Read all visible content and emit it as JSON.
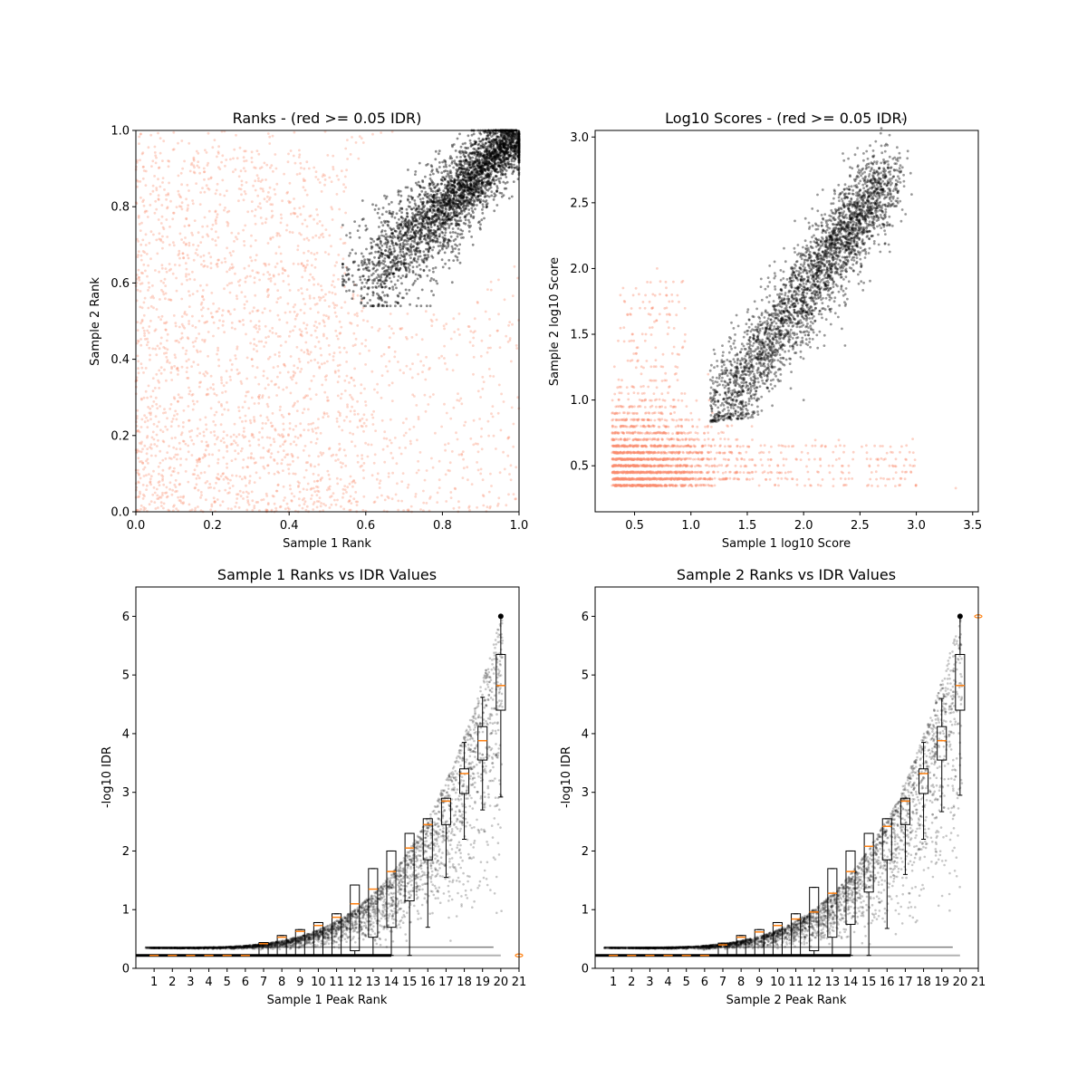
{
  "chart_data": [
    {
      "type": "scatter",
      "title": "Ranks - (red >= 0.05 IDR)",
      "xlabel": "Sample 1 Rank",
      "ylabel": "Sample 2 Rank",
      "xlim": [
        0,
        1
      ],
      "ylim": [
        0,
        1
      ],
      "xticks": [
        "0.0",
        "0.2",
        "0.4",
        "0.6",
        "0.8",
        "1.0"
      ],
      "yticks": [
        "0.0",
        "0.2",
        "0.4",
        "0.6",
        "0.8",
        "1.0"
      ],
      "grid": false,
      "legend": "none",
      "series": [
        {
          "color": "#fa8c6e",
          "description_region": "points spread over the lower-left and full range",
          "points": [
            [
              0.05,
              0.05
            ],
            [
              0.1,
              0.3
            ],
            [
              0.2,
              0.15
            ],
            [
              0.3,
              0.5
            ],
            [
              0.4,
              0.1
            ],
            [
              0.15,
              0.7
            ],
            [
              0.5,
              0.3
            ],
            [
              0.7,
              0.2
            ],
            [
              0.9,
              0.1
            ],
            [
              0.35,
              0.85
            ],
            [
              0.6,
              0.45
            ],
            [
              0.25,
              0.6
            ]
          ]
        },
        {
          "color": "#000000",
          "description_region": "points in the upper-right crescent",
          "points": [
            [
              0.55,
              0.62
            ],
            [
              0.6,
              0.75
            ],
            [
              0.7,
              0.65
            ],
            [
              0.75,
              0.85
            ],
            [
              0.8,
              0.75
            ],
            [
              0.85,
              0.9
            ],
            [
              0.9,
              0.85
            ],
            [
              0.95,
              0.95
            ],
            [
              0.98,
              0.99
            ],
            [
              0.65,
              0.55
            ],
            [
              0.88,
              0.7
            ]
          ]
        }
      ]
    },
    {
      "type": "scatter",
      "title": "Log10 Scores - (red >= 0.05 IDR)",
      "xlabel": "Sample 1 log10 Score",
      "ylabel": "Sample 2 log10 Score",
      "xlim": [
        0.15,
        3.55
      ],
      "ylim": [
        0.15,
        3.05
      ],
      "xticks": [
        0.5,
        1.0,
        1.5,
        2.0,
        2.5,
        3.0,
        3.5
      ],
      "xtick_labels": [
        "0.5",
        "1.0",
        "1.5",
        "2.0",
        "2.5",
        "3.0",
        "3.5"
      ],
      "yticks": [
        0.5,
        1.0,
        1.5,
        2.0,
        2.5,
        3.0
      ],
      "ytick_labels": [
        "0.5",
        "1.0",
        "1.5",
        "2.0",
        "2.5",
        "3.0"
      ],
      "grid": false,
      "legend": "none",
      "series": [
        {
          "color": "#fa8c6e",
          "points": [
            [
              0.3,
              0.35
            ],
            [
              0.5,
              0.6
            ],
            [
              0.8,
              0.5
            ],
            [
              1.0,
              0.9
            ],
            [
              0.6,
              1.5
            ],
            [
              0.7,
              2.0
            ],
            [
              1.2,
              0.7
            ],
            [
              1.8,
              0.6
            ],
            [
              2.4,
              0.5
            ],
            [
              2.9,
              0.4
            ],
            [
              3.35,
              0.33
            ]
          ]
        },
        {
          "color": "#000000",
          "points": [
            [
              1.2,
              0.85
            ],
            [
              1.3,
              1.2
            ],
            [
              1.5,
              1.5
            ],
            [
              1.7,
              1.3
            ],
            [
              1.9,
              1.8
            ],
            [
              2.1,
              1.6
            ],
            [
              2.3,
              2.1
            ],
            [
              2.5,
              2.4
            ],
            [
              2.7,
              2.6
            ],
            [
              2.8,
              2.7
            ],
            [
              2.0,
              1.0
            ]
          ]
        }
      ]
    },
    {
      "type": "box",
      "title": "Sample 1 Ranks vs IDR Values",
      "xlabel": "Sample 1 Peak Rank",
      "ylabel": "-log10 IDR",
      "xlim": [
        0,
        21
      ],
      "ylim": [
        0,
        6.5
      ],
      "xticks": [
        "1",
        "2",
        "3",
        "4",
        "5",
        "6",
        "7",
        "8",
        "9",
        "10",
        "11",
        "12",
        "13",
        "14",
        "15",
        "16",
        "17",
        "18",
        "19",
        "20",
        "21"
      ],
      "yticks": [
        "0",
        "1",
        "2",
        "3",
        "4",
        "5",
        "6"
      ],
      "grid": false,
      "legend": "none",
      "boxes": [
        {
          "x": 1,
          "q1": 0.22,
          "median": 0.22,
          "q3": 0.22,
          "wlo": 0.22,
          "whi": 0.22
        },
        {
          "x": 2,
          "q1": 0.22,
          "median": 0.22,
          "q3": 0.22,
          "wlo": 0.22,
          "whi": 0.22
        },
        {
          "x": 3,
          "q1": 0.22,
          "median": 0.22,
          "q3": 0.22,
          "wlo": 0.22,
          "whi": 0.22
        },
        {
          "x": 4,
          "q1": 0.22,
          "median": 0.22,
          "q3": 0.22,
          "wlo": 0.22,
          "whi": 0.22
        },
        {
          "x": 5,
          "q1": 0.22,
          "median": 0.22,
          "q3": 0.22,
          "wlo": 0.22,
          "whi": 0.22
        },
        {
          "x": 6,
          "q1": 0.22,
          "median": 0.22,
          "q3": 0.22,
          "wlo": 0.22,
          "whi": 0.22
        },
        {
          "x": 7,
          "q1": 0.22,
          "median": 0.42,
          "q3": 0.44,
          "wlo": 0.22,
          "whi": 0.44
        },
        {
          "x": 8,
          "q1": 0.22,
          "median": 0.53,
          "q3": 0.56,
          "wlo": 0.22,
          "whi": 0.56
        },
        {
          "x": 9,
          "q1": 0.22,
          "median": 0.63,
          "q3": 0.66,
          "wlo": 0.22,
          "whi": 0.66
        },
        {
          "x": 10,
          "q1": 0.22,
          "median": 0.73,
          "q3": 0.78,
          "wlo": 0.22,
          "whi": 0.78
        },
        {
          "x": 11,
          "q1": 0.22,
          "median": 0.87,
          "q3": 0.93,
          "wlo": 0.22,
          "whi": 0.93
        },
        {
          "x": 12,
          "q1": 0.3,
          "median": 1.1,
          "q3": 1.42,
          "wlo": 0.22,
          "whi": 1.42
        },
        {
          "x": 13,
          "q1": 0.53,
          "median": 1.35,
          "q3": 1.7,
          "wlo": 0.22,
          "whi": 1.7
        },
        {
          "x": 14,
          "q1": 0.7,
          "median": 1.65,
          "q3": 2.0,
          "wlo": 0.22,
          "whi": 2.0
        },
        {
          "x": 15,
          "q1": 1.15,
          "median": 2.05,
          "q3": 2.3,
          "wlo": 0.22,
          "whi": 2.3
        },
        {
          "x": 16,
          "q1": 1.85,
          "median": 2.45,
          "q3": 2.55,
          "wlo": 0.7,
          "whi": 2.55
        },
        {
          "x": 17,
          "q1": 2.45,
          "median": 2.85,
          "q3": 2.9,
          "wlo": 1.55,
          "whi": 2.9
        },
        {
          "x": 18,
          "q1": 2.98,
          "median": 3.32,
          "q3": 3.4,
          "wlo": 2.2,
          "whi": 3.85
        },
        {
          "x": 19,
          "q1": 3.55,
          "median": 3.88,
          "q3": 4.12,
          "wlo": 2.7,
          "whi": 4.62
        },
        {
          "x": 20,
          "q1": 4.4,
          "median": 4.82,
          "q3": 5.35,
          "wlo": 2.92,
          "whi": 6.0
        }
      ],
      "outliers": [
        {
          "x": 21,
          "y": 0.22
        }
      ]
    },
    {
      "type": "box",
      "title": "Sample 2 Ranks vs IDR Values",
      "xlabel": "Sample 2 Peak Rank",
      "ylabel": "-log10 IDR",
      "xlim": [
        0,
        21
      ],
      "ylim": [
        0,
        6.5
      ],
      "xticks": [
        "1",
        "2",
        "3",
        "4",
        "5",
        "6",
        "7",
        "8",
        "9",
        "10",
        "11",
        "12",
        "13",
        "14",
        "15",
        "16",
        "17",
        "18",
        "19",
        "20",
        "21"
      ],
      "yticks": [
        "0",
        "1",
        "2",
        "3",
        "4",
        "5",
        "6"
      ],
      "grid": false,
      "legend": "none",
      "boxes": [
        {
          "x": 1,
          "q1": 0.22,
          "median": 0.22,
          "q3": 0.22,
          "wlo": 0.22,
          "whi": 0.22
        },
        {
          "x": 2,
          "q1": 0.22,
          "median": 0.22,
          "q3": 0.22,
          "wlo": 0.22,
          "whi": 0.22
        },
        {
          "x": 3,
          "q1": 0.22,
          "median": 0.22,
          "q3": 0.22,
          "wlo": 0.22,
          "whi": 0.22
        },
        {
          "x": 4,
          "q1": 0.22,
          "median": 0.22,
          "q3": 0.22,
          "wlo": 0.22,
          "whi": 0.22
        },
        {
          "x": 5,
          "q1": 0.22,
          "median": 0.22,
          "q3": 0.22,
          "wlo": 0.22,
          "whi": 0.22
        },
        {
          "x": 6,
          "q1": 0.22,
          "median": 0.22,
          "q3": 0.22,
          "wlo": 0.22,
          "whi": 0.22
        },
        {
          "x": 7,
          "q1": 0.22,
          "median": 0.4,
          "q3": 0.43,
          "wlo": 0.22,
          "whi": 0.43
        },
        {
          "x": 8,
          "q1": 0.22,
          "median": 0.53,
          "q3": 0.56,
          "wlo": 0.22,
          "whi": 0.56
        },
        {
          "x": 9,
          "q1": 0.22,
          "median": 0.62,
          "q3": 0.66,
          "wlo": 0.22,
          "whi": 0.66
        },
        {
          "x": 10,
          "q1": 0.22,
          "median": 0.73,
          "q3": 0.78,
          "wlo": 0.22,
          "whi": 0.78
        },
        {
          "x": 11,
          "q1": 0.22,
          "median": 0.84,
          "q3": 0.93,
          "wlo": 0.22,
          "whi": 0.93
        },
        {
          "x": 12,
          "q1": 0.3,
          "median": 0.96,
          "q3": 1.38,
          "wlo": 0.22,
          "whi": 1.38
        },
        {
          "x": 13,
          "q1": 0.53,
          "median": 1.28,
          "q3": 1.7,
          "wlo": 0.22,
          "whi": 1.7
        },
        {
          "x": 14,
          "q1": 0.75,
          "median": 1.65,
          "q3": 2.0,
          "wlo": 0.22,
          "whi": 2.0
        },
        {
          "x": 15,
          "q1": 1.3,
          "median": 2.08,
          "q3": 2.3,
          "wlo": 0.22,
          "whi": 2.3
        },
        {
          "x": 16,
          "q1": 1.85,
          "median": 2.42,
          "q3": 2.55,
          "wlo": 0.68,
          "whi": 2.55
        },
        {
          "x": 17,
          "q1": 2.45,
          "median": 2.85,
          "q3": 2.9,
          "wlo": 1.6,
          "whi": 2.9
        },
        {
          "x": 18,
          "q1": 2.98,
          "median": 3.32,
          "q3": 3.4,
          "wlo": 2.2,
          "whi": 3.85
        },
        {
          "x": 19,
          "q1": 3.55,
          "median": 3.88,
          "q3": 4.12,
          "wlo": 2.67,
          "whi": 4.6
        },
        {
          "x": 20,
          "q1": 4.4,
          "median": 4.82,
          "q3": 5.35,
          "wlo": 2.95,
          "whi": 6.0
        }
      ],
      "outliers": [
        {
          "x": 21,
          "y": 6.0
        }
      ]
    }
  ],
  "colors": {
    "low_confidence": "#fa8c6e",
    "high_confidence": "#000000",
    "median_line": "#ff7f0e"
  }
}
